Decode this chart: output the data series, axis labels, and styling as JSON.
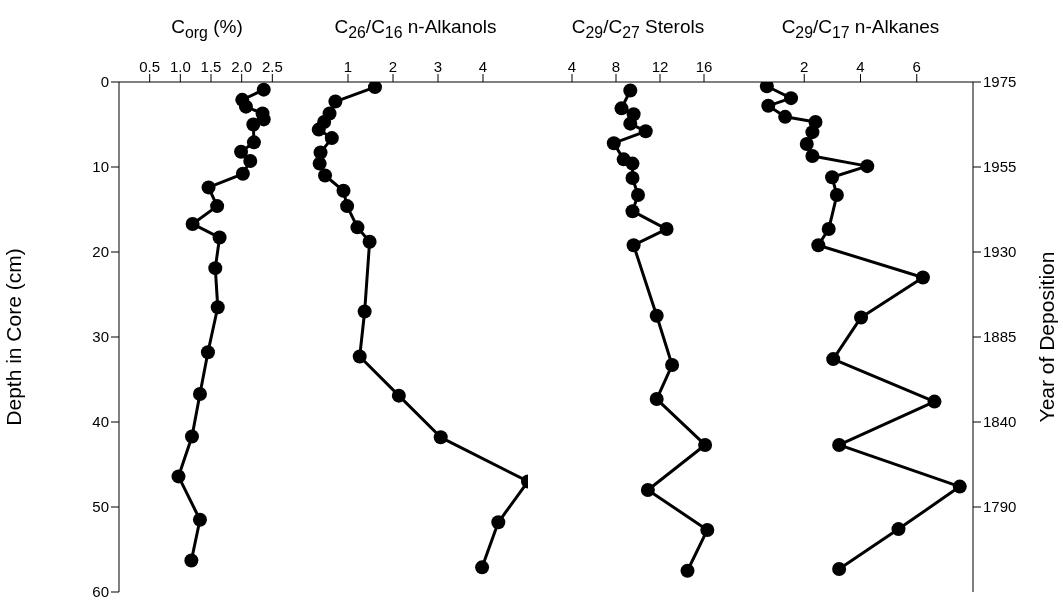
{
  "chart_data": [
    {
      "type": "line",
      "title": "C$_{org}$ (%)",
      "ylabel": "Depth in Core (cm)",
      "color": "#000000",
      "marker": "circle",
      "line_style": "solid",
      "x": [
        2.36,
        2.01,
        2.07,
        2.34,
        2.36,
        2.19,
        2.2,
        1.99,
        2.14,
        2.02,
        1.46,
        1.6,
        1.2,
        1.64,
        1.57,
        1.61,
        1.45,
        1.32,
        1.19,
        0.97,
        1.32,
        1.18
      ],
      "values": [
        0.9,
        2.1,
        2.9,
        3.7,
        4.4,
        5.0,
        7.1,
        8.2,
        9.3,
        10.8,
        12.4,
        14.6,
        16.7,
        18.3,
        21.9,
        26.5,
        31.8,
        36.7,
        41.7,
        46.4,
        51.5,
        56.3
      ],
      "xlim": [
        0,
        3
      ],
      "xticks": [
        0.5,
        {
          "value": 1,
          "label": "1.0"
        },
        1.5,
        {
          "value": 2,
          "label": "2.0"
        },
        2.5
      ],
      "ylim": [
        60,
        0
      ],
      "yticks": [
        0,
        10,
        20,
        30,
        40,
        50,
        60
      ]
    },
    {
      "type": "line",
      "title": "C$_{26}$/C$_{16}$ n-Alkanols",
      "color": "#000000",
      "marker": "circle",
      "line_style": "solid",
      "tick_labels": "x",
      "x": [
        1.6,
        0.72,
        0.59,
        0.47,
        0.35,
        0.64,
        0.39,
        0.37,
        0.49,
        0.9,
        0.98,
        1.21,
        1.48,
        1.37,
        1.26,
        2.13,
        3.06,
        5.0,
        4.34,
        3.98
      ],
      "values": [
        0.6,
        2.3,
        3.7,
        4.7,
        5.6,
        6.6,
        8.3,
        9.6,
        11.0,
        12.8,
        14.6,
        17.1,
        18.8,
        27.0,
        32.3,
        36.9,
        41.8,
        47.0,
        51.8,
        57.1
      ],
      "xlim": [
        0,
        5
      ],
      "xticks": [
        1,
        2,
        3,
        4
      ],
      "ylim": [
        60,
        0
      ],
      "yticks": [
        0,
        10,
        20,
        30,
        40,
        50,
        60
      ]
    },
    {
      "type": "line",
      "title": "C$_{29}$/C$_{27}$ Sterols",
      "color": "#000000",
      "marker": "circle",
      "line_style": "solid",
      "tick_labels": "x",
      "x": [
        9.3,
        8.5,
        9.6,
        9.3,
        10.7,
        7.8,
        8.7,
        9.5,
        9.5,
        10.0,
        9.5,
        12.6,
        9.6,
        11.7,
        13.1,
        11.7,
        16.1,
        10.9,
        16.3,
        14.5
      ],
      "values": [
        1.0,
        3.1,
        3.8,
        4.9,
        5.8,
        7.2,
        9.1,
        9.6,
        11.3,
        13.3,
        15.2,
        17.3,
        19.2,
        27.5,
        33.3,
        37.3,
        42.7,
        48.0,
        52.7,
        57.5
      ],
      "xlim": [
        0,
        20
      ],
      "xticks": [
        4,
        8,
        12,
        16
      ],
      "ylim": [
        60,
        0
      ],
      "yticks": [
        0,
        10,
        20,
        30,
        40,
        50,
        60
      ]
    },
    {
      "type": "line",
      "title": "C$_{29}$/C$_{17}$ n-Alkanes",
      "y2label": "Year of Deposition",
      "color": "#000000",
      "marker": "circle",
      "line_style": "solid",
      "tick_labels": "x",
      "x": [
        0.67,
        1.53,
        0.72,
        1.32,
        2.4,
        2.29,
        2.09,
        2.29,
        4.24,
        2.99,
        3.16,
        2.87,
        2.5,
        6.22,
        4.02,
        3.03,
        6.63,
        3.24,
        7.53,
        5.35,
        3.24
      ],
      "values": [
        0.5,
        1.9,
        2.8,
        4.1,
        4.7,
        5.9,
        7.3,
        8.7,
        9.9,
        11.2,
        13.3,
        17.3,
        19.2,
        23.0,
        27.7,
        32.6,
        37.6,
        42.7,
        47.6,
        52.6,
        57.3
      ],
      "xlim": [
        0,
        8
      ],
      "xticks": [
        2,
        4,
        6
      ],
      "ylim": [
        60,
        0
      ],
      "yticks": [
        0,
        10,
        20,
        30,
        40,
        50,
        60
      ],
      "annotations": [
        "1975",
        "1955",
        "1930",
        "1885",
        "1840",
        "1790"
      ]
    }
  ]
}
